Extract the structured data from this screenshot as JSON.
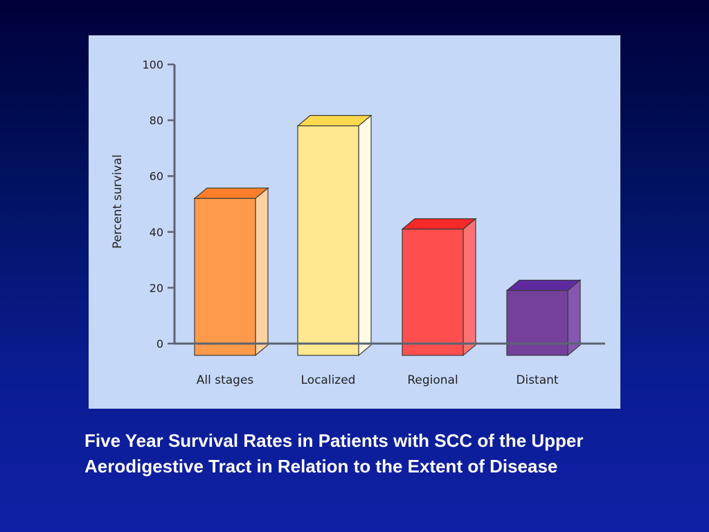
{
  "slide": {
    "caption": "Five Year Survival Rates in Patients with SCC of the Upper Aerodigestive Tract in Relation to the Extent of Disease"
  },
  "chart_data": {
    "type": "bar",
    "title": "",
    "xlabel": "",
    "ylabel": "Percent survival",
    "ylim": [
      0,
      100
    ],
    "yticks": [
      "0",
      "20",
      "40",
      "60",
      "80",
      "100"
    ],
    "categories": [
      "All stages",
      "Localized",
      "Regional",
      "Distant"
    ],
    "values": [
      52,
      78,
      41,
      19
    ],
    "bar_style": "3d",
    "colors": {
      "front": [
        "#ff9a4a",
        "#ffe890",
        "#ff4e4e",
        "#74409c"
      ],
      "side": [
        "#ffd0a0",
        "#fffbe6",
        "#ff7272",
        "#8656b0"
      ],
      "top": [
        "#ff7e2a",
        "#ffd84e",
        "#f62828",
        "#5e2aa0"
      ]
    },
    "grid": false,
    "legend": "none"
  }
}
